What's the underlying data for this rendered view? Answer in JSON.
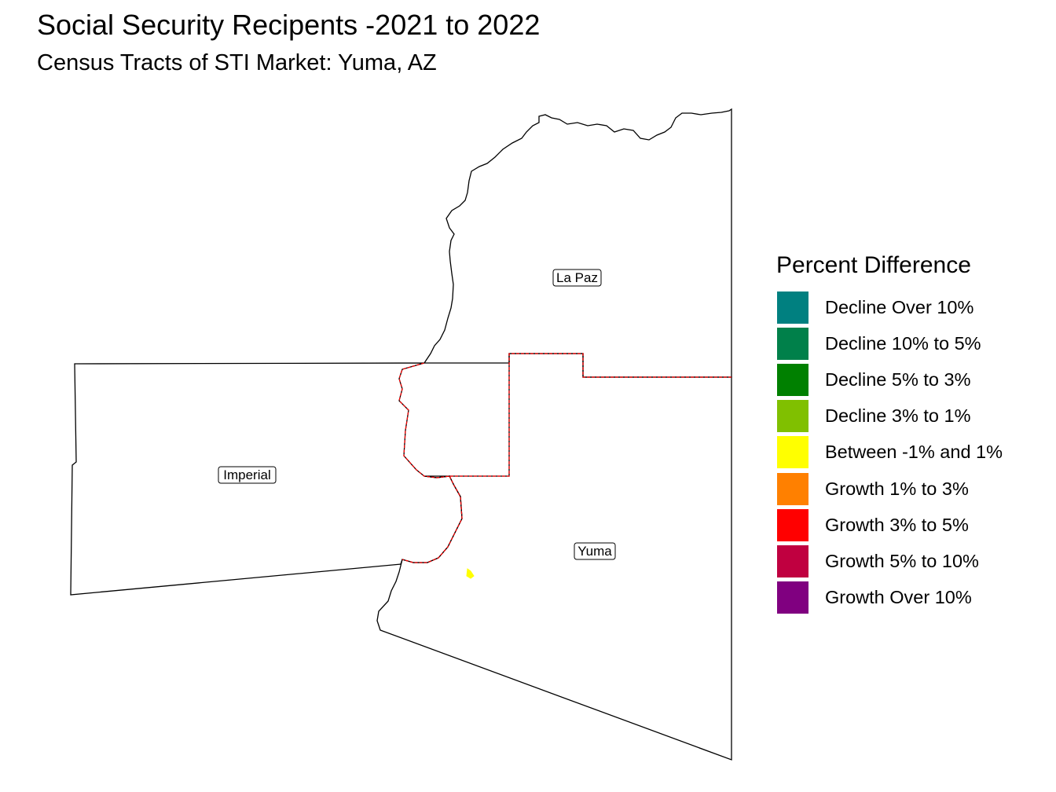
{
  "title": "Social Security Recipents -2021 to 2022",
  "subtitle": "Census Tracts of STI Market: Yuma, AZ",
  "map": {
    "counties": [
      {
        "name": "La Paz"
      },
      {
        "name": "Imperial"
      },
      {
        "name": "Yuma"
      }
    ],
    "boundary_colors": {
      "county": "#000000",
      "market": "#ff0000"
    },
    "highlight_tract_class": "Between -1% and 1%"
  },
  "legend": {
    "title": "Percent Difference",
    "items": [
      {
        "label": "Decline Over 10%",
        "color": "#008080"
      },
      {
        "label": "Decline 10% to 5%",
        "color": "#00804a"
      },
      {
        "label": "Decline 5% to 3%",
        "color": "#008000"
      },
      {
        "label": "Decline 3% to 1%",
        "color": "#80c000"
      },
      {
        "label": "Between -1% and 1%",
        "color": "#ffff00"
      },
      {
        "label": "Growth 1% to 3%",
        "color": "#ff8000"
      },
      {
        "label": "Growth 3% to 5%",
        "color": "#ff0000"
      },
      {
        "label": "Growth 5% to 10%",
        "color": "#c00040"
      },
      {
        "label": "Growth Over 10%",
        "color": "#800080"
      }
    ]
  }
}
